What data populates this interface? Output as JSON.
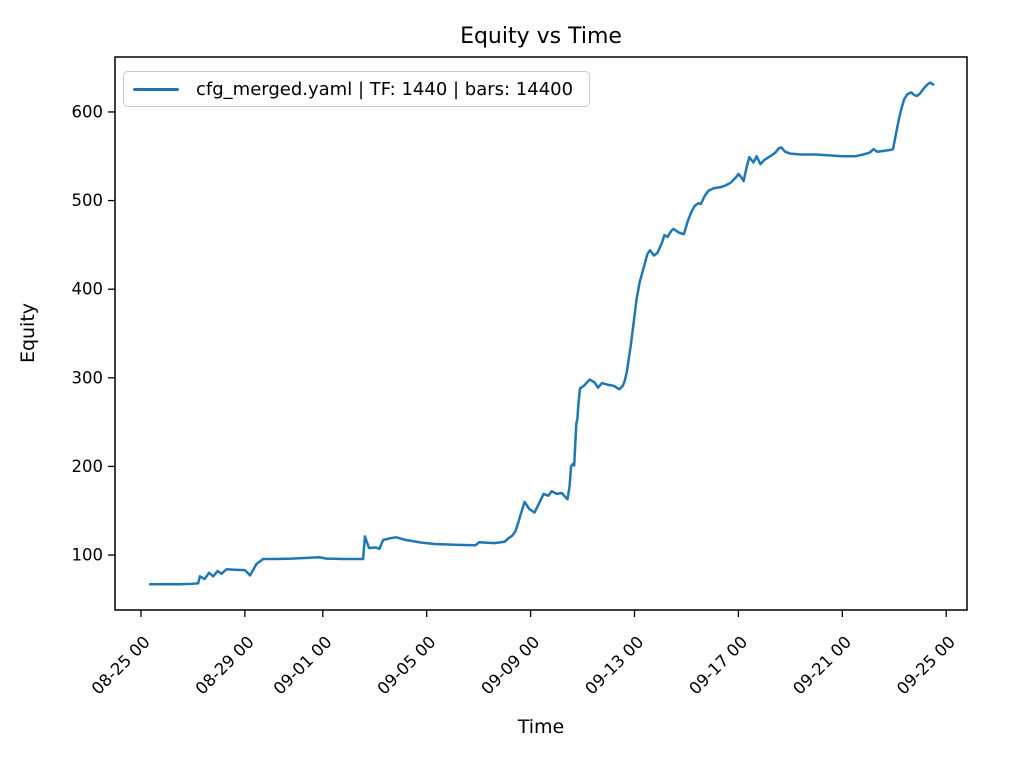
{
  "figure": {
    "background": "#ffffff",
    "spine_color": "#000000",
    "tick_color": "#000000"
  },
  "chart_data": {
    "type": "line",
    "title": "Equity vs Time",
    "xlabel": "Time",
    "ylabel": "Equity",
    "grid": false,
    "legend": {
      "position": "upper left",
      "entries": [
        {
          "label": "cfg_merged.yaml | TF: 1440 | bars: 14400",
          "color": "#1f77b4"
        }
      ]
    },
    "x_axis": {
      "unit": "days since 08-25 00:00",
      "range": [
        -1.0,
        31.8
      ],
      "tick_rotation_deg": 45,
      "ticks": [
        {
          "t": 0,
          "label": "08-25 00"
        },
        {
          "t": 4,
          "label": "08-29 00"
        },
        {
          "t": 7,
          "label": "09-01 00"
        },
        {
          "t": 11,
          "label": "09-05 00"
        },
        {
          "t": 15,
          "label": "09-09 00"
        },
        {
          "t": 19,
          "label": "09-13 00"
        },
        {
          "t": 23,
          "label": "09-17 00"
        },
        {
          "t": 27,
          "label": "09-21 00"
        },
        {
          "t": 31,
          "label": "09-25 00"
        }
      ]
    },
    "y_axis": {
      "range": [
        38,
        662
      ],
      "ticks": [
        100,
        200,
        300,
        400,
        500,
        600
      ]
    },
    "series": [
      {
        "name": "cfg_merged.yaml | TF: 1440 | bars: 14400",
        "color": "#1f77b4",
        "line_width": 2.5,
        "points": [
          [
            0.35,
            67
          ],
          [
            0.9,
            67
          ],
          [
            1.5,
            67
          ],
          [
            1.9,
            67.5
          ],
          [
            2.2,
            68
          ],
          [
            2.27,
            76
          ],
          [
            2.45,
            73
          ],
          [
            2.62,
            80
          ],
          [
            2.78,
            76
          ],
          [
            2.95,
            82
          ],
          [
            3.1,
            79
          ],
          [
            3.3,
            84
          ],
          [
            3.6,
            83.5
          ],
          [
            4.0,
            83
          ],
          [
            4.2,
            77
          ],
          [
            4.45,
            90
          ],
          [
            4.7,
            95.5
          ],
          [
            5.2,
            95.5
          ],
          [
            5.8,
            96
          ],
          [
            6.5,
            97
          ],
          [
            6.88,
            97.5
          ],
          [
            7.15,
            96
          ],
          [
            7.8,
            95.5
          ],
          [
            8.55,
            95.5
          ],
          [
            8.62,
            121
          ],
          [
            8.78,
            108
          ],
          [
            9.05,
            108.5
          ],
          [
            9.18,
            107
          ],
          [
            9.32,
            117
          ],
          [
            9.6,
            119
          ],
          [
            9.82,
            120
          ],
          [
            10.2,
            117
          ],
          [
            10.8,
            114
          ],
          [
            11.3,
            112.5
          ],
          [
            12.2,
            111.5
          ],
          [
            12.88,
            111
          ],
          [
            13.02,
            114.5
          ],
          [
            13.6,
            113.5
          ],
          [
            14.0,
            115
          ],
          [
            14.15,
            119
          ],
          [
            14.3,
            122
          ],
          [
            14.42,
            127
          ],
          [
            14.52,
            136
          ],
          [
            14.62,
            146
          ],
          [
            14.77,
            160
          ],
          [
            14.95,
            152
          ],
          [
            15.15,
            148
          ],
          [
            15.32,
            158
          ],
          [
            15.5,
            169
          ],
          [
            15.68,
            167
          ],
          [
            15.81,
            172
          ],
          [
            16.0,
            169
          ],
          [
            16.2,
            170
          ],
          [
            16.32,
            166
          ],
          [
            16.42,
            163
          ],
          [
            16.5,
            178
          ],
          [
            16.56,
            200
          ],
          [
            16.63,
            203
          ],
          [
            16.68,
            201
          ],
          [
            16.72,
            226
          ],
          [
            16.76,
            248
          ],
          [
            16.8,
            254
          ],
          [
            16.84,
            270
          ],
          [
            16.9,
            288
          ],
          [
            17.05,
            291
          ],
          [
            17.27,
            298
          ],
          [
            17.45,
            295
          ],
          [
            17.6,
            289
          ],
          [
            17.75,
            294
          ],
          [
            18.0,
            292
          ],
          [
            18.2,
            291
          ],
          [
            18.42,
            287
          ],
          [
            18.55,
            291
          ],
          [
            18.62,
            296
          ],
          [
            18.7,
            306
          ],
          [
            18.85,
            335
          ],
          [
            19.0,
            370
          ],
          [
            19.08,
            389
          ],
          [
            19.2,
            408
          ],
          [
            19.35,
            424
          ],
          [
            19.5,
            440
          ],
          [
            19.6,
            444
          ],
          [
            19.75,
            438
          ],
          [
            19.88,
            441
          ],
          [
            20.05,
            452
          ],
          [
            20.15,
            461
          ],
          [
            20.27,
            459
          ],
          [
            20.42,
            466
          ],
          [
            20.5,
            468
          ],
          [
            20.7,
            464
          ],
          [
            20.9,
            462
          ],
          [
            21.05,
            477
          ],
          [
            21.2,
            488
          ],
          [
            21.32,
            494
          ],
          [
            21.45,
            497
          ],
          [
            21.55,
            496
          ],
          [
            21.7,
            505
          ],
          [
            21.85,
            511
          ],
          [
            22.05,
            514
          ],
          [
            22.3,
            515
          ],
          [
            22.5,
            517
          ],
          [
            22.7,
            520
          ],
          [
            22.9,
            526
          ],
          [
            23.0,
            530
          ],
          [
            23.12,
            526
          ],
          [
            23.2,
            522
          ],
          [
            23.32,
            538
          ],
          [
            23.42,
            549
          ],
          [
            23.58,
            543
          ],
          [
            23.7,
            550
          ],
          [
            23.85,
            541
          ],
          [
            24.0,
            546
          ],
          [
            24.12,
            548
          ],
          [
            24.27,
            551
          ],
          [
            24.42,
            554
          ],
          [
            24.55,
            559
          ],
          [
            24.65,
            560
          ],
          [
            24.8,
            555
          ],
          [
            25.0,
            553
          ],
          [
            25.4,
            552
          ],
          [
            26.0,
            552
          ],
          [
            26.5,
            551
          ],
          [
            27.0,
            550
          ],
          [
            27.5,
            550
          ],
          [
            27.8,
            552
          ],
          [
            28.05,
            554
          ],
          [
            28.2,
            558
          ],
          [
            28.35,
            555
          ],
          [
            28.6,
            556
          ],
          [
            28.8,
            557
          ],
          [
            28.95,
            558
          ],
          [
            29.08,
            577
          ],
          [
            29.18,
            592
          ],
          [
            29.28,
            604
          ],
          [
            29.38,
            614
          ],
          [
            29.5,
            620
          ],
          [
            29.65,
            622
          ],
          [
            29.77,
            619
          ],
          [
            29.88,
            618
          ],
          [
            30.0,
            621
          ],
          [
            30.12,
            626
          ],
          [
            30.27,
            631
          ],
          [
            30.38,
            633
          ],
          [
            30.5,
            631
          ]
        ]
      }
    ]
  }
}
